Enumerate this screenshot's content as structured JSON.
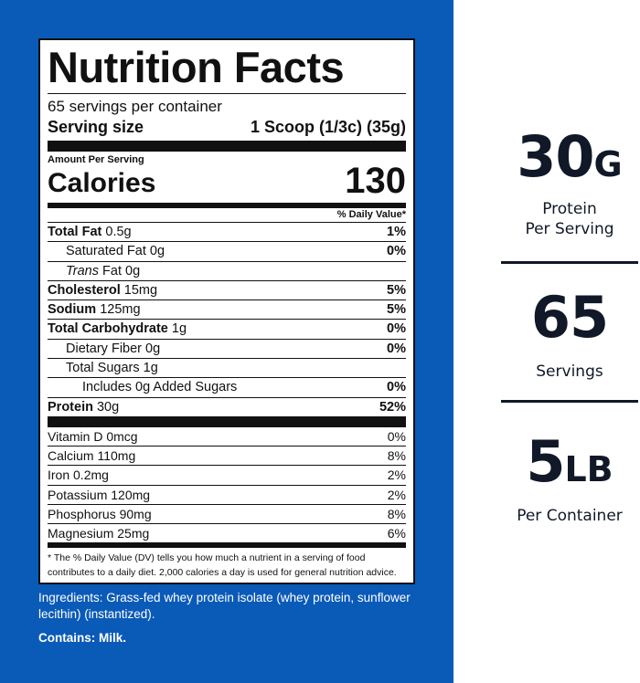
{
  "label": {
    "title": "Nutrition Facts",
    "servings_per_container": "65 servings per container",
    "serving_size_label": "Serving size",
    "serving_size_value": "1 Scoop (1/3c) (35g)",
    "amount_per_serving": "Amount Per Serving",
    "calories_label": "Calories",
    "calories_value": "130",
    "dv_header": "% Daily Value*",
    "nutrients": [
      {
        "name": "Total Fat",
        "amount": "0.5g",
        "dv": "1%"
      },
      {
        "name": "Saturated Fat",
        "amount": "0g",
        "dv": "0%"
      },
      {
        "name": "Trans",
        "suffix": "Fat",
        "amount": "0g",
        "dv": ""
      },
      {
        "name": "Cholesterol",
        "amount": "15mg",
        "dv": "5%"
      },
      {
        "name": "Sodium",
        "amount": "125mg",
        "dv": "5%"
      },
      {
        "name": "Total Carbohydrate",
        "amount": "1g",
        "dv": "0%"
      },
      {
        "name": "Dietary Fiber",
        "amount": "0g",
        "dv": "0%"
      },
      {
        "name": "Total Sugars",
        "amount": "1g",
        "dv": ""
      },
      {
        "name": "Includes 0g Added Sugars",
        "amount": "",
        "dv": "0%"
      },
      {
        "name": "Protein",
        "amount": "30g",
        "dv": "52%"
      }
    ],
    "vitamins": [
      {
        "name": "Vitamin D",
        "amount": "0mcg",
        "dv": "0%"
      },
      {
        "name": "Calcium",
        "amount": "110mg",
        "dv": "8%"
      },
      {
        "name": "Iron",
        "amount": "0.2mg",
        "dv": "2%"
      },
      {
        "name": "Potassium",
        "amount": "120mg",
        "dv": "2%"
      },
      {
        "name": "Phosphorus",
        "amount": "90mg",
        "dv": "8%"
      },
      {
        "name": "Magnesium",
        "amount": "25mg",
        "dv": "6%"
      }
    ],
    "footnote": "* The % Daily Value (DV) tells you how much a nutrient in a serving of food contributes to a daily diet. 2,000 calories a day is used for general nutrition advice."
  },
  "ingredients": "Ingredients: Grass-fed whey protein isolate (whey protein, sunflower lecithin) (instantized).",
  "contains": "Contains: Milk.",
  "stats": [
    {
      "number": "30",
      "unit": "G",
      "caption_line1": "Protein",
      "caption_line2": "Per Serving"
    },
    {
      "number": "65",
      "unit": "",
      "caption_line1": "Servings",
      "caption_line2": ""
    },
    {
      "number": "5",
      "unit": "LB",
      "caption_line1": "Per Container",
      "caption_line2": ""
    }
  ],
  "colors": {
    "panel_blue": "#0a5ab8",
    "stat_text": "#111827"
  }
}
